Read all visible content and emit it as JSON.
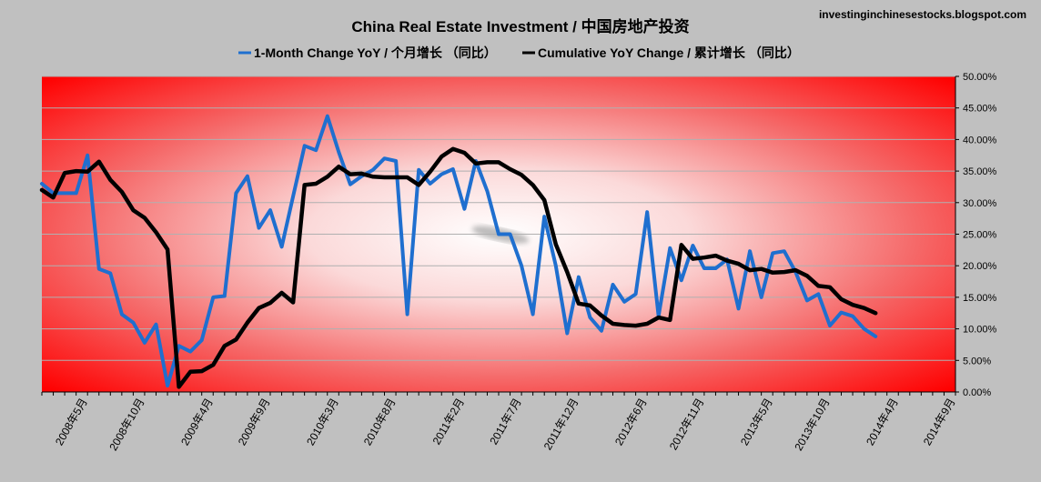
{
  "source": "investinginchinesestocks.blogspot.com",
  "chart_data": {
    "type": "line",
    "title": "China Real Estate Investment /  中国房地产投资",
    "legend_position": "top-center",
    "y_axis_side": "right",
    "ylim": [
      0,
      50
    ],
    "yticks": [
      "0.00%",
      "5.00%",
      "10.00%",
      "15.00%",
      "20.00%",
      "25.00%",
      "30.00%",
      "35.00%",
      "40.00%",
      "45.00%",
      "50.00%"
    ],
    "x_tick_labels": [
      "2008年5月",
      "2008年10月",
      "2009年4月",
      "2009年9月",
      "2010年3月",
      "2010年8月",
      "2011年2月",
      "2011年7月",
      "2011年12月",
      "2012年6月",
      "2012年11月",
      "2013年5月",
      "2013年10月",
      "2014年4月",
      "2014年9月"
    ],
    "x_tick_positions": [
      4,
      9,
      15,
      20,
      26,
      31,
      37,
      42,
      47,
      53,
      58,
      64,
      69,
      75,
      80
    ],
    "x_count": 81,
    "colors": {
      "monthly": "#1f6fcf",
      "cumulative": "#000000"
    },
    "series": [
      {
        "name": "1-Month Change YoY /  个月增长 （同比）",
        "color": "#1f6fcf",
        "values": [
          33,
          31.5,
          31.5,
          31.5,
          37.5,
          19.5,
          18.8,
          12.3,
          11,
          7.8,
          10.7,
          1,
          7.3,
          6.4,
          8.2,
          15,
          15.2,
          31.5,
          34.2,
          26,
          28.8,
          23,
          31,
          39,
          38.3,
          43.7,
          38,
          32.9,
          34.2,
          35.2,
          37,
          36.6,
          12.3,
          35.2,
          33,
          34.5,
          35.3,
          29,
          36.6,
          31.8,
          25,
          25,
          20,
          12.3,
          27.8,
          20,
          9.3,
          18.2,
          11.8,
          9.7,
          17,
          14.3,
          15.5,
          28.5,
          12,
          22.8,
          17.7,
          23.2,
          19.6,
          19.6,
          21,
          13.2,
          22.3,
          15,
          22,
          22.3,
          19,
          14.5,
          15.5,
          10.5,
          12.6,
          12,
          10,
          8.8
        ]
      },
      {
        "name": "Cumulative YoY Change /  累计增长 （同比）",
        "color": "#000000",
        "values": [
          32,
          30.8,
          34.7,
          35,
          34.9,
          36.5,
          33.6,
          31.7,
          28.8,
          27.6,
          25.3,
          22.6,
          0.8,
          3.2,
          3.3,
          4.3,
          7.3,
          8.3,
          11,
          13.3,
          14.1,
          15.7,
          14.2,
          32.8,
          33,
          34.1,
          35.7,
          34.5,
          34.6,
          34.1,
          34,
          34,
          34,
          32.8,
          34.9,
          37.3,
          38.5,
          37.9,
          36.2,
          36.4,
          36.4,
          35.3,
          34.4,
          32.8,
          30.4,
          23.4,
          19,
          14,
          13.7,
          12.1,
          10.8,
          10.6,
          10.5,
          10.8,
          11.8,
          11.4,
          23.3,
          21.1,
          21.3,
          21.6,
          20.8,
          20.3,
          19.3,
          19.5,
          18.9,
          19,
          19.3,
          18.4,
          16.8,
          16.6,
          14.7,
          13.8,
          13.3,
          12.5
        ]
      }
    ]
  }
}
